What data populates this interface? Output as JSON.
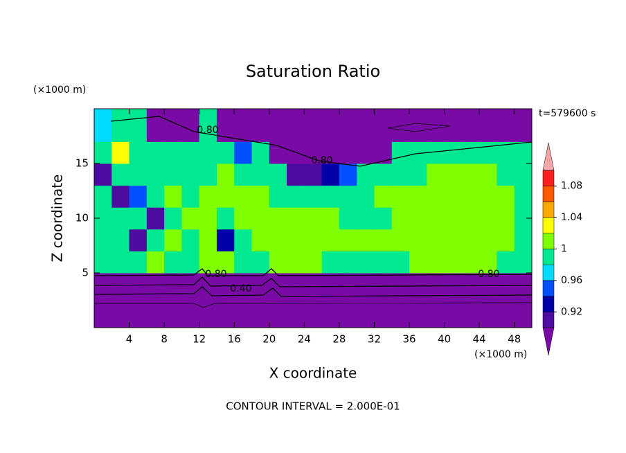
{
  "chart_data": {
    "type": "contour",
    "title": "Saturation Ratio",
    "time_label": "t=579600 s",
    "x_label": "X coordinate",
    "x_unit": "(×1000 m)",
    "y_label": "Z coordinate",
    "y_unit": "(×1000 m)",
    "footer": "CONTOUR INTERVAL = 2.000E-01",
    "xlim": [
      0,
      50
    ],
    "ylim": [
      0,
      20
    ],
    "xticks": [
      4,
      8,
      12,
      16,
      20,
      24,
      28,
      32,
      36,
      40,
      44,
      48
    ],
    "yticks": [
      5,
      10,
      15
    ],
    "x_edges": [
      0,
      2,
      4,
      6,
      8,
      10,
      12,
      14,
      16,
      18,
      20,
      22,
      24,
      26,
      28,
      30,
      32,
      34,
      36,
      38,
      40,
      42,
      44,
      46,
      48,
      50
    ],
    "z_edges": [
      0,
      2,
      4,
      5,
      7,
      9,
      11,
      13,
      15,
      17,
      20
    ],
    "values": [
      [
        0.3,
        0.3,
        0.3,
        0.3,
        0.3,
        0.3,
        0.3,
        0.3,
        0.3,
        0.3,
        0.3,
        0.3,
        0.3,
        0.3,
        0.3,
        0.3,
        0.3,
        0.3,
        0.3,
        0.3,
        0.3,
        0.3,
        0.3,
        0.3,
        0.3
      ],
      [
        0.5,
        0.5,
        0.5,
        0.5,
        0.5,
        0.5,
        0.5,
        0.5,
        0.5,
        0.5,
        0.5,
        0.5,
        0.5,
        0.5,
        0.5,
        0.5,
        0.5,
        0.5,
        0.5,
        0.5,
        0.5,
        0.5,
        0.5,
        0.5,
        0.5
      ],
      [
        0.8,
        0.8,
        0.8,
        0.8,
        0.8,
        0.8,
        0.8,
        0.8,
        0.8,
        0.8,
        0.8,
        0.8,
        0.8,
        0.8,
        0.8,
        0.8,
        0.8,
        0.8,
        0.8,
        0.8,
        0.8,
        0.8,
        0.8,
        0.8,
        0.8
      ],
      [
        0.99,
        0.99,
        0.99,
        1.01,
        0.99,
        0.99,
        1.01,
        1.01,
        0.99,
        0.99,
        1.01,
        1.01,
        1.01,
        0.99,
        0.99,
        0.99,
        0.99,
        0.99,
        1.01,
        1.01,
        1.01,
        1.01,
        1.01,
        0.99,
        0.99
      ],
      [
        0.99,
        0.99,
        0.91,
        0.99,
        1.01,
        0.99,
        1.01,
        0.93,
        0.99,
        1.01,
        1.01,
        1.01,
        1.01,
        1.01,
        1.01,
        1.01,
        1.01,
        1.01,
        1.01,
        1.01,
        1.01,
        1.01,
        1.01,
        1.01,
        0.99
      ],
      [
        0.99,
        0.99,
        0.99,
        0.91,
        0.99,
        1.01,
        1.01,
        0.99,
        1.01,
        1.01,
        1.01,
        1.01,
        1.01,
        1.01,
        0.99,
        0.99,
        0.99,
        1.01,
        1.01,
        1.01,
        1.01,
        1.01,
        1.01,
        1.01,
        0.99
      ],
      [
        0.99,
        0.91,
        0.95,
        0.99,
        1.01,
        0.99,
        1.01,
        1.01,
        1.01,
        1.01,
        0.99,
        0.99,
        0.99,
        0.99,
        0.99,
        0.99,
        1.01,
        1.01,
        1.01,
        1.01,
        1.01,
        1.01,
        1.01,
        1.01,
        0.99
      ],
      [
        0.91,
        0.99,
        0.99,
        0.99,
        0.99,
        0.99,
        0.99,
        1.01,
        0.99,
        0.99,
        0.99,
        0.91,
        0.91,
        0.93,
        0.95,
        0.99,
        0.99,
        0.99,
        0.99,
        1.01,
        1.01,
        1.01,
        1.01,
        0.99,
        0.99
      ],
      [
        0.99,
        1.03,
        0.99,
        0.99,
        0.99,
        0.99,
        0.99,
        0.99,
        0.95,
        0.99,
        0.8,
        0.8,
        0.8,
        0.8,
        0.8,
        0.8,
        0.8,
        0.99,
        0.99,
        0.99,
        0.99,
        0.99,
        0.99,
        0.99,
        0.99
      ],
      [
        0.97,
        0.99,
        0.99,
        0.8,
        0.8,
        0.8,
        0.99,
        0.8,
        0.8,
        0.8,
        0.8,
        0.8,
        0.8,
        0.8,
        0.8,
        0.8,
        0.8,
        0.8,
        0.8,
        0.8,
        0.8,
        0.8,
        0.8,
        0.8,
        0.8
      ]
    ],
    "levels": [
      0.9,
      0.92,
      0.94,
      0.96,
      0.98,
      1,
      1.02,
      1.04,
      1.06,
      1.08,
      1.1
    ],
    "colors": [
      "#7a0aa6",
      "#4d0ba0",
      "#0000a8",
      "#0050ff",
      "#00dcff",
      "#00e890",
      "#80ff00",
      "#ffff00",
      "#ffaa00",
      "#ff5a00",
      "#ff2020",
      "#f4a6a6"
    ],
    "colorbar_ticks": [
      0.92,
      0.96,
      1,
      1.04,
      1.08
    ],
    "contour_labels": [
      "0.80",
      "0.80",
      "0.80",
      "0.80",
      "0.40"
    ]
  }
}
